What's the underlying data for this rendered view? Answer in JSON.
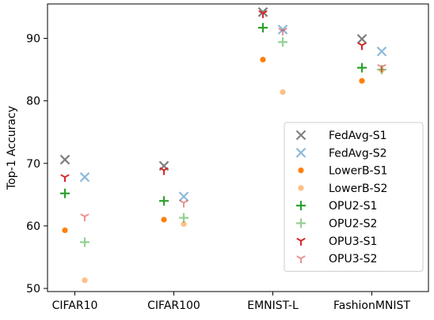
{
  "chart_data": {
    "type": "scatter",
    "ylabel": "Top-1 Accuracy",
    "xlabel": "",
    "categories": [
      "CIFAR10",
      "CIFAR100",
      "EMNIST-L",
      "FashionMNIST"
    ],
    "ylim": [
      49.5,
      95.5
    ],
    "yticks": [
      50,
      60,
      70,
      80,
      90
    ],
    "legend_position": "lower-right",
    "grid": false,
    "series": [
      {
        "name": "FedAvg-S1",
        "marker": "x",
        "color": "#7f7f7f",
        "alpha": 1.0,
        "group": 0,
        "values": [
          70.6,
          69.6,
          94.2,
          89.9
        ]
      },
      {
        "name": "FedAvg-S2",
        "marker": "x",
        "color": "#1f77b4",
        "alpha": 0.5,
        "group": 1,
        "values": [
          67.8,
          64.7,
          91.4,
          87.9
        ]
      },
      {
        "name": "LowerB-S1",
        "marker": "dot",
        "color": "#ff7f0e",
        "alpha": 1.0,
        "group": 0,
        "values": [
          59.3,
          61.0,
          86.6,
          83.2
        ]
      },
      {
        "name": "LowerB-S2",
        "marker": "dot",
        "color": "#ff7f0e",
        "alpha": 0.5,
        "group": 1,
        "values": [
          51.3,
          60.3,
          81.4,
          84.9
        ]
      },
      {
        "name": "OPU2-S1",
        "marker": "plus",
        "color": "#2ca02c",
        "alpha": 1.0,
        "group": 0,
        "values": [
          65.2,
          64.0,
          91.7,
          85.3
        ]
      },
      {
        "name": "OPU2-S2",
        "marker": "plus",
        "color": "#2ca02c",
        "alpha": 0.5,
        "group": 1,
        "values": [
          57.4,
          61.3,
          89.4,
          85.0
        ]
      },
      {
        "name": "OPU3-S1",
        "marker": "tri",
        "color": "#d62728",
        "alpha": 1.0,
        "group": 0,
        "values": [
          67.8,
          68.9,
          94.0,
          88.9
        ]
      },
      {
        "name": "OPU3-S2",
        "marker": "tri",
        "color": "#d62728",
        "alpha": 0.5,
        "group": 1,
        "values": [
          61.5,
          63.7,
          91.2,
          85.4
        ]
      }
    ]
  }
}
